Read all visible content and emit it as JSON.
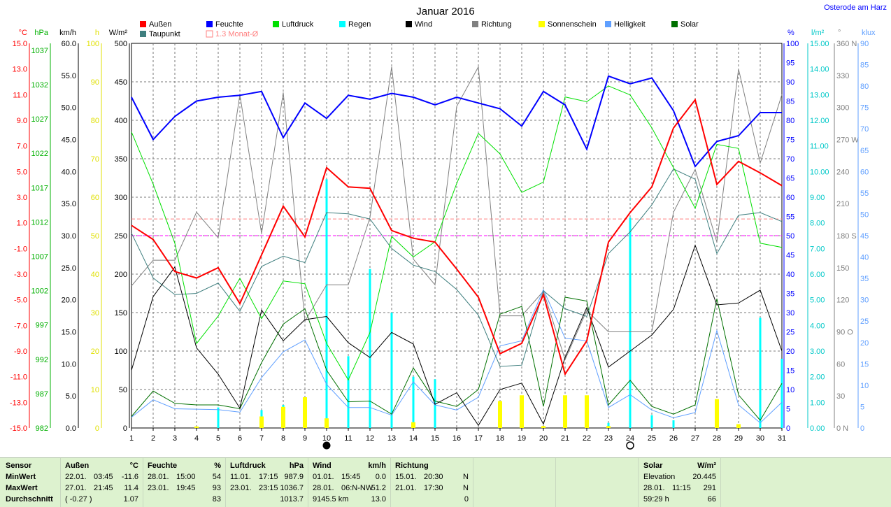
{
  "title": "Januar 2016",
  "station": "Osterode am Harz",
  "legend": [
    {
      "label": "Außen",
      "color": "#ff0000",
      "style": "box"
    },
    {
      "label": "Feuchte",
      "color": "#0000ff",
      "style": "box"
    },
    {
      "label": "Luftdruck",
      "color": "#00e000",
      "style": "box"
    },
    {
      "label": "Regen",
      "color": "#00ffff",
      "style": "box"
    },
    {
      "label": "Wind",
      "color": "#000000",
      "style": "box"
    },
    {
      "label": "Richtung",
      "color": "#808080",
      "style": "box"
    },
    {
      "label": "Sonnenschein",
      "color": "#ffff00",
      "style": "box"
    },
    {
      "label": "Helligkeit",
      "color": "#5f9fff",
      "style": "box"
    },
    {
      "label": "Solar",
      "color": "#007000",
      "style": "box"
    },
    {
      "label": "Taupunkt",
      "color": "#3f7f7f",
      "style": "box"
    },
    {
      "label": "1.3 Monat-Ø",
      "color": "#ff8080",
      "style": "outline"
    }
  ],
  "left_axes": [
    {
      "unit": "°C",
      "color": "#ff0000",
      "ticks": [
        "15.0",
        "13.0",
        "11.0",
        "9.0",
        "7.0",
        "5.0",
        "3.0",
        "1.0",
        "-1.0",
        "-3.0",
        "-5.0",
        "-7.0",
        "-9.0",
        "-11.0",
        "-13.0",
        "-15.0"
      ]
    },
    {
      "unit": "hPa",
      "color": "#00b000",
      "ticks": [
        "1037",
        "1032",
        "1027",
        "1022",
        "1017",
        "1012",
        "1007",
        "1002",
        "997",
        "992",
        "987",
        "982"
      ]
    },
    {
      "unit": "km/h",
      "color": "#000000",
      "ticks": [
        "60.0",
        "55.0",
        "50.0",
        "45.0",
        "40.0",
        "35.0",
        "30.0",
        "25.0",
        "20.0",
        "15.0",
        "10.0",
        "5.0",
        "0.0"
      ]
    },
    {
      "unit": "h",
      "color": "#e0e000",
      "ticks": [
        "100",
        "90",
        "80",
        "70",
        "60",
        "50",
        "40",
        "30",
        "20",
        "10",
        "0"
      ]
    },
    {
      "unit": "W/m²",
      "color": "#000000",
      "ticks": [
        "500",
        "450",
        "400",
        "350",
        "300",
        "250",
        "200",
        "150",
        "100",
        "50",
        "0"
      ]
    }
  ],
  "right_axes": [
    {
      "unit": "%",
      "color": "#0000ff",
      "ticks": [
        "100",
        "95",
        "90",
        "85",
        "80",
        "75",
        "70",
        "65",
        "60",
        "55",
        "50",
        "45",
        "40",
        "35",
        "30",
        "25",
        "20",
        "15",
        "10",
        "5",
        "0"
      ]
    },
    {
      "unit": "l/m²",
      "color": "#00c8c8",
      "ticks": [
        "15.00",
        "14.00",
        "13.00",
        "12.00",
        "11.00",
        "10.00",
        "9.00",
        "8.00",
        "7.00",
        "6.00",
        "5.00",
        "4.00",
        "3.00",
        "2.00",
        "1.00",
        "0.00"
      ]
    },
    {
      "unit": "°",
      "color": "#808080",
      "ticks": [
        "360 N",
        "330",
        "300",
        "270 W",
        "240",
        "210",
        "180 S",
        "150",
        "120",
        "90 O",
        "60",
        "30",
        "0 N"
      ]
    },
    {
      "unit": "klux",
      "color": "#5f9fff",
      "ticks": [
        "90",
        "85",
        "80",
        "75",
        "70",
        "65",
        "60",
        "55",
        "50",
        "45",
        "40",
        "35",
        "30",
        "25",
        "20",
        "15",
        "10",
        "5",
        "0"
      ]
    }
  ],
  "x_ticks": [
    "1",
    "2",
    "3",
    "4",
    "5",
    "6",
    "7",
    "8",
    "9",
    "10",
    "11",
    "12",
    "13",
    "14",
    "15",
    "16",
    "17",
    "18",
    "19",
    "20",
    "21",
    "22",
    "23",
    "24",
    "25",
    "26",
    "27",
    "28",
    "29",
    "30",
    "31"
  ],
  "chart_data": {
    "type": "line",
    "title": "Januar 2016",
    "x": [
      1,
      2,
      3,
      4,
      5,
      6,
      7,
      8,
      9,
      10,
      11,
      12,
      13,
      14,
      15,
      16,
      17,
      18,
      19,
      20,
      21,
      22,
      23,
      24,
      25,
      26,
      27,
      28,
      29,
      30,
      31
    ],
    "xlim": [
      1,
      31
    ],
    "grid": true,
    "legend_position": "top",
    "moon_phases": [
      {
        "day": 10,
        "phase": "new"
      },
      {
        "day": 24,
        "phase": "full"
      }
    ],
    "reference_lines": [
      {
        "name": "1.3 Monat-Ø",
        "axis": "°C",
        "value": 1.3,
        "color": "#ff8080"
      },
      {
        "axis": "%",
        "value": 50,
        "color": "#ff00ff"
      }
    ],
    "series": [
      {
        "name": "Außen",
        "unit": "°C",
        "type": "line",
        "color": "#ff0000",
        "range": [
          -15,
          15
        ],
        "values": [
          0.8,
          -0.3,
          -2.8,
          -3.3,
          -2.5,
          -5.3,
          -1.5,
          2.3,
          -0.1,
          5.3,
          3.8,
          3.7,
          0.4,
          -0.2,
          -0.5,
          -2.6,
          -4.8,
          -9.2,
          -8.4,
          -4.6,
          -10.8,
          -8.2,
          -0.5,
          1.8,
          3.8,
          8.4,
          10.6,
          4.0,
          5.8,
          4.9,
          3.9
        ]
      },
      {
        "name": "Feuchte",
        "unit": "%",
        "type": "line",
        "color": "#0000ff",
        "range": [
          0,
          100
        ],
        "values": [
          86,
          75,
          81,
          85,
          86,
          86.5,
          87.5,
          75.5,
          84.5,
          80.5,
          86.5,
          85.5,
          87,
          86,
          84,
          86,
          84.5,
          83,
          78.5,
          87.5,
          84,
          72.5,
          91.5,
          89.5,
          91,
          82.5,
          68,
          74.5,
          76,
          82,
          82
        ]
      },
      {
        "name": "Luftdruck",
        "unit": "hPa",
        "type": "line",
        "color": "#00e000",
        "range": [
          982,
          1038
        ],
        "values": [
          1025.1,
          1017.5,
          1008.9,
          994.3,
          998.3,
          1003.8,
          997.9,
          1003.4,
          1003.0,
          994.3,
          989.0,
          995.9,
          1009.9,
          1006.9,
          1009.1,
          1017.6,
          1024.9,
          1021.9,
          1016.3,
          1017.8,
          1030.2,
          1029.5,
          1031.8,
          1030.5,
          1025.7,
          1019.9,
          1014.0,
          1023.3,
          1022.7,
          1008.9,
          1008.3
        ]
      },
      {
        "name": "Taupunkt",
        "unit": "°C",
        "type": "line",
        "color": "#3f7f7f",
        "range": [
          -15,
          15
        ],
        "values": [
          0.2,
          -3.3,
          -4.6,
          -4.5,
          -3.7,
          -5.9,
          -2.4,
          -1.6,
          -2.1,
          1.8,
          1.7,
          1.3,
          -1.0,
          -2.3,
          -2.8,
          -4.2,
          -6.2,
          -10.2,
          -10.1,
          -4.3,
          -5.7,
          -6.3,
          -1.4,
          0.3,
          2.4,
          5.2,
          4.4,
          -1.4,
          1.6,
          1.8,
          1.1
        ]
      },
      {
        "name": "Wind",
        "unit": "km/h",
        "type": "line",
        "color": "#000000",
        "range": [
          0,
          60
        ],
        "values": [
          9.0,
          20.5,
          25.1,
          12.5,
          8.4,
          3.1,
          18.4,
          13.6,
          16.9,
          17.4,
          13.3,
          11.0,
          14.9,
          13.1,
          3.7,
          5.5,
          0.4,
          6.0,
          7.0,
          0.6,
          11.0,
          18.8,
          9.5,
          12.0,
          14.5,
          18.5,
          28.5,
          19.2,
          19.5,
          21.5,
          12.0
        ]
      },
      {
        "name": "Richtung",
        "unit": "°",
        "type": "line",
        "color": "#808080",
        "range": [
          0,
          360
        ],
        "values": [
          133,
          157,
          157,
          202,
          178,
          312,
          182,
          314,
          100,
          134,
          134,
          197,
          338,
          158,
          134,
          301,
          338,
          105,
          105,
          128,
          64,
          110,
          90,
          90,
          90,
          202,
          242,
          174,
          336,
          248,
          312
        ]
      },
      {
        "name": "Regen",
        "unit": "l/m²",
        "type": "bar",
        "color": "#00ffff",
        "range": [
          0,
          15
        ],
        "values": [
          0,
          0,
          0,
          0,
          0.8,
          0,
          0.7,
          0.9,
          0.2,
          9.7,
          2.8,
          6.2,
          4.5,
          2.0,
          1.9,
          0,
          0,
          0,
          0,
          0,
          0,
          0,
          0.2,
          8.2,
          0.5,
          0.3,
          0,
          0.5,
          0,
          4.3,
          2.7
        ]
      },
      {
        "name": "Sonnenschein",
        "unit": "h",
        "type": "bar",
        "color": "#ffff00",
        "range": [
          0,
          100
        ],
        "values": [
          0,
          0,
          0,
          0.4,
          0,
          0,
          3.0,
          5.5,
          8.0,
          2.5,
          0,
          0,
          0,
          1.5,
          0,
          0,
          0,
          7.0,
          8.5,
          0.5,
          8.5,
          8.5,
          0.5,
          0,
          0,
          0,
          0,
          7.5,
          1.0,
          0,
          0
        ]
      },
      {
        "name": "Helligkeit",
        "unit": "klux",
        "type": "line",
        "color": "#5f9fff",
        "range": [
          0,
          90
        ],
        "values": [
          2.5,
          6.6,
          4.5,
          4.4,
          4.3,
          3.7,
          11.8,
          17.8,
          20.6,
          10.2,
          4.8,
          4.8,
          3.0,
          10.8,
          5.4,
          4.2,
          7.2,
          19.2,
          20.4,
          32.4,
          21.0,
          20.4,
          4.8,
          7.8,
          4.2,
          2.4,
          3.6,
          22.8,
          5.4,
          1.2,
          6.0
        ]
      },
      {
        "name": "Solar",
        "unit": "W/m²",
        "type": "line",
        "color": "#007000",
        "range": [
          0,
          500
        ],
        "values": [
          15,
          48,
          32,
          30,
          30,
          25,
          85,
          135,
          155,
          75,
          34,
          35,
          18,
          78,
          35,
          28,
          50,
          148,
          158,
          28,
          170,
          165,
          30,
          62,
          28,
          18,
          30,
          168,
          43,
          10,
          58
        ]
      }
    ]
  },
  "stats": {
    "sensor": {
      "header": "Sensor",
      "rows": [
        "MinWert",
        "MaxWert",
        "Durchschnitt"
      ]
    },
    "aussen": {
      "header": "Außen",
      "unit": "°C",
      "rows": [
        [
          "22.01.",
          "03:45",
          "-11.6"
        ],
        [
          "27.01.",
          "21:45",
          "11.4"
        ],
        [
          "( -0.27 )",
          "",
          "1.07"
        ]
      ]
    },
    "feuchte": {
      "header": "Feuchte",
      "unit": "%",
      "rows": [
        [
          "28.01.",
          "15:00",
          "54"
        ],
        [
          "23.01.",
          "19:45",
          "93"
        ],
        [
          "",
          "",
          "83"
        ]
      ]
    },
    "luftdruck": {
      "header": "Luftdruck",
      "unit": "hPa",
      "rows": [
        [
          "11.01.",
          "17:15",
          "987.9"
        ],
        [
          "23.01.",
          "23:15",
          "1036.7"
        ],
        [
          "",
          "",
          "1013.7"
        ]
      ]
    },
    "wind": {
      "header": "Wind",
      "unit": "km/h",
      "rows": [
        [
          "01.01.",
          "15:45",
          "0.0"
        ],
        [
          "28.01.",
          "06:N-NW",
          "51.2"
        ],
        [
          "9145.5 km",
          "",
          "13.0"
        ]
      ]
    },
    "richtung": {
      "header": "Richtung",
      "rows": [
        [
          "15.01.",
          "20:30",
          "N"
        ],
        [
          "21.01.",
          "17:30",
          "N"
        ],
        [
          "",
          "",
          "0"
        ]
      ]
    },
    "solar": {
      "header": "Solar",
      "unit": "W/m²",
      "rows": [
        [
          "Elevation",
          "",
          "20.445"
        ],
        [
          "28.01.",
          "11:15",
          "291"
        ],
        [
          "59:29 h",
          "",
          "66"
        ]
      ]
    }
  }
}
